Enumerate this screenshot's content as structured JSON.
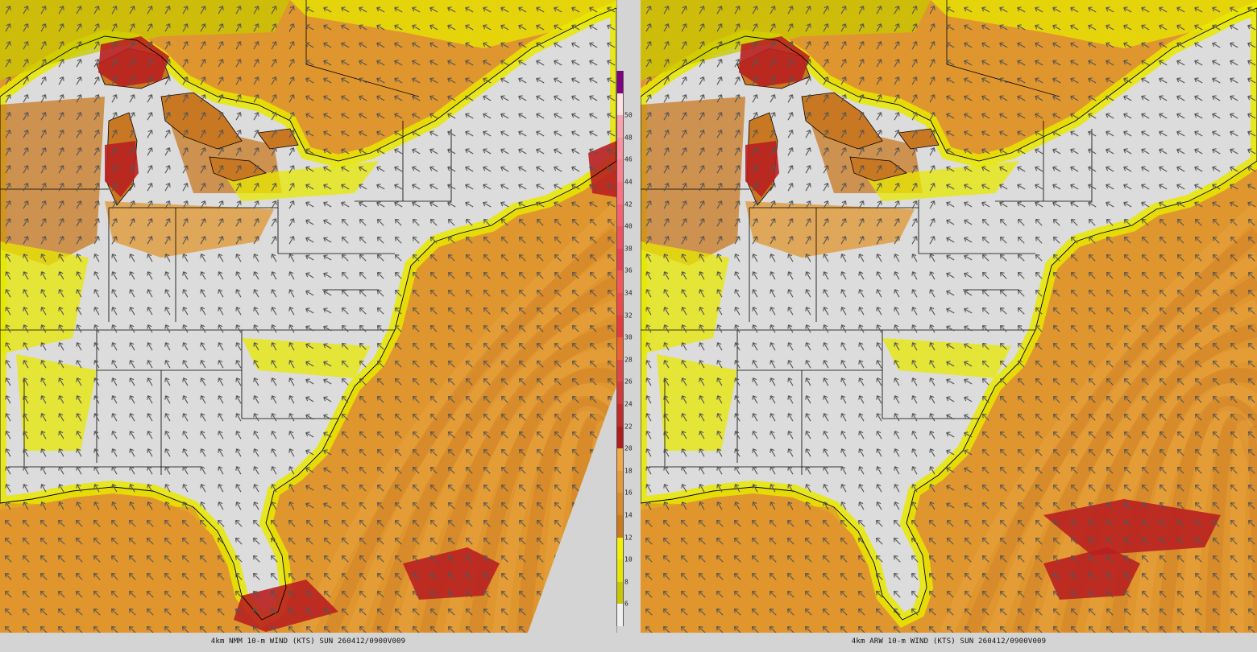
{
  "panels": [
    {
      "id": "left",
      "caption": "4km NMM 10-m WIND (KTS) SUN 260412/0900V009",
      "wedge": true,
      "hotspots": [
        {
          "region": "lake-superior",
          "speed": 22
        },
        {
          "region": "lake-michigan",
          "speed": 22
        },
        {
          "region": "gulf-of-maine",
          "speed": 22
        },
        {
          "region": "florida-straits",
          "speed": 22
        },
        {
          "region": "bahamas",
          "speed": 22
        }
      ]
    },
    {
      "id": "right",
      "caption": "4km ARW 10-m WIND (KTS) SUN 260412/0900V009",
      "wedge": false,
      "hotspots": [
        {
          "region": "lake-superior",
          "speed": 22
        },
        {
          "region": "lake-michigan",
          "speed": 22
        },
        {
          "region": "atlantic-south",
          "speed": 22
        },
        {
          "region": "bahamas",
          "speed": 22
        }
      ]
    }
  ],
  "colorbar": {
    "unit": "KTS",
    "levels": [
      {
        "label": "",
        "color": "#f0f0f0"
      },
      {
        "label": "6",
        "color": "#c8c800"
      },
      {
        "label": "8",
        "color": "#e6e600"
      },
      {
        "label": "10",
        "color": "#f2f200"
      },
      {
        "label": "12",
        "color": "#cc7a1a"
      },
      {
        "label": "14",
        "color": "#d98a2a"
      },
      {
        "label": "16",
        "color": "#e59a3a"
      },
      {
        "label": "18",
        "color": "#f0a848"
      },
      {
        "label": "20",
        "color": "#b01c1c"
      },
      {
        "label": "22",
        "color": "#c22a2a"
      },
      {
        "label": "24",
        "color": "#d43838"
      },
      {
        "label": "26",
        "color": "#e04646"
      },
      {
        "label": "28",
        "color": "#f06030"
      },
      {
        "label": "30",
        "color": "#e83a3a"
      },
      {
        "label": "32",
        "color": "#f04848"
      },
      {
        "label": "34",
        "color": "#f85656"
      },
      {
        "label": "36",
        "color": "#e84050"
      },
      {
        "label": "38",
        "color": "#f05060"
      },
      {
        "label": "40",
        "color": "#f86070"
      },
      {
        "label": "42",
        "color": "#ff7080"
      },
      {
        "label": "44",
        "color": "#ff8090"
      },
      {
        "label": "46",
        "color": "#ff90a0"
      },
      {
        "label": "48",
        "color": "#ffa0b0"
      },
      {
        "label": "50",
        "color": "#ffe0e0"
      },
      {
        "label": "",
        "color": "#800080"
      }
    ]
  },
  "colors": {
    "land": "#dcdcdc",
    "yellow": "#e8e800",
    "olive": "#c8c800",
    "orange": "#e0962e",
    "orange_dark": "#c87822",
    "red": "#b82020",
    "border": "#000000",
    "arrow": "#555555"
  }
}
